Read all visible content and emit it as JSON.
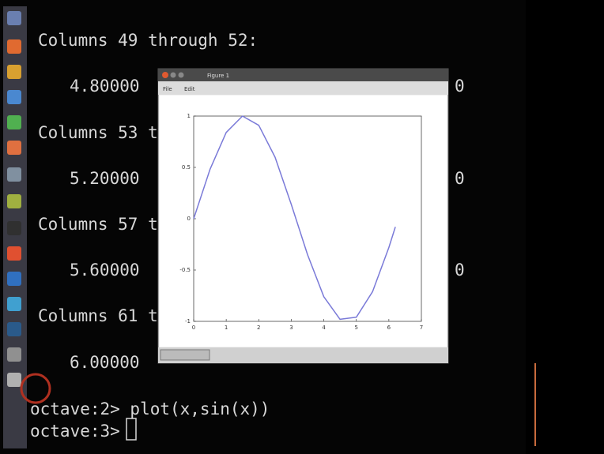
{
  "terminal": {
    "lines": [
      "Columns 49 through 52:",
      "4.80000",
      "0",
      "Columns 53 t",
      "5.20000",
      "0",
      "Columns 57 t",
      "5.60000",
      "0",
      "Columns 61 t",
      "6.00000",
      "octave:2> plot(x,sin(x))",
      "octave:3>"
    ]
  },
  "figure": {
    "title": "Figure 1",
    "menu": [
      "File",
      "Edit"
    ],
    "chart": {
      "type": "line",
      "color": "#7a7ad8",
      "x": [
        0,
        0.5,
        1,
        1.5,
        2,
        2.5,
        3,
        3.5,
        4,
        4.5,
        5,
        5.5,
        6,
        6.2
      ],
      "values": [
        0,
        0.48,
        0.84,
        1,
        0.91,
        0.6,
        0.14,
        -0.35,
        -0.76,
        -0.98,
        -0.96,
        -0.71,
        -0.28,
        -0.08
      ],
      "xlim": [
        0,
        7
      ],
      "ylim": [
        -1,
        1
      ],
      "xticks": [
        0,
        1,
        2,
        3,
        4,
        5,
        6,
        7
      ],
      "yticks": [
        -1,
        -0.5,
        0,
        0.5,
        1
      ]
    }
  }
}
